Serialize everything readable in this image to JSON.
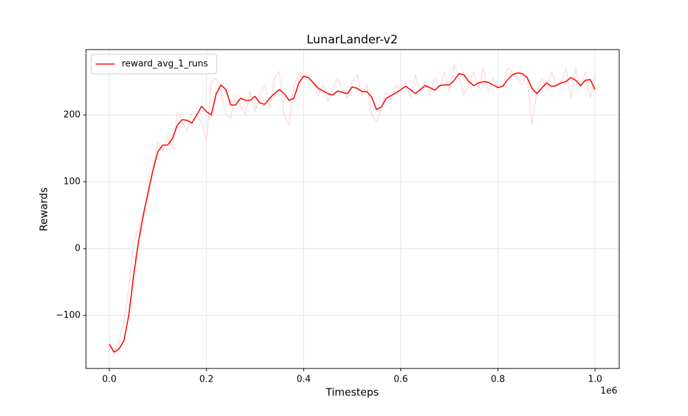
{
  "chart_data": {
    "type": "line",
    "title": "LunarLander-v2",
    "x_label": "Timesteps",
    "y_label": "Rewards",
    "x_offset_label": "1e6",
    "x": [
      0.0,
      0.01,
      0.02,
      0.03,
      0.04,
      0.05,
      0.06,
      0.07,
      0.08,
      0.09,
      0.1,
      0.11,
      0.12,
      0.13,
      0.14,
      0.15,
      0.16,
      0.17,
      0.18,
      0.19,
      0.2,
      0.21,
      0.22,
      0.23,
      0.24,
      0.25,
      0.26,
      0.27,
      0.28,
      0.29,
      0.3,
      0.31,
      0.32,
      0.33,
      0.34,
      0.35,
      0.36,
      0.37,
      0.38,
      0.39,
      0.4,
      0.41,
      0.42,
      0.43,
      0.44,
      0.45,
      0.46,
      0.47,
      0.48,
      0.49,
      0.5,
      0.51,
      0.52,
      0.53,
      0.54,
      0.55,
      0.56,
      0.57,
      0.58,
      0.59,
      0.6,
      0.61,
      0.62,
      0.63,
      0.64,
      0.65,
      0.66,
      0.67,
      0.68,
      0.69,
      0.7,
      0.71,
      0.72,
      0.73,
      0.74,
      0.75,
      0.76,
      0.77,
      0.78,
      0.79,
      0.8,
      0.81,
      0.82,
      0.83,
      0.84,
      0.85,
      0.86,
      0.87,
      0.88,
      0.89,
      0.9,
      0.91,
      0.92,
      0.93,
      0.94,
      0.95,
      0.96,
      0.97,
      0.98,
      0.99,
      1.0
    ],
    "series": [
      {
        "color": "#ffdede",
        "values": [
          -150,
          -152,
          -140,
          -110,
          -60,
          10,
          30,
          55,
          80,
          120,
          160,
          145,
          170,
          150,
          205,
          190,
          175,
          205,
          200,
          190,
          160,
          250,
          255,
          235,
          200,
          195,
          230,
          215,
          200,
          235,
          205,
          230,
          245,
          210,
          255,
          265,
          200,
          185,
          245,
          260,
          255,
          260,
          250,
          228,
          245,
          220,
          240,
          255,
          235,
          225,
          250,
          260,
          230,
          245,
          200,
          190,
          210,
          235,
          222,
          245,
          240,
          250,
          225,
          260,
          235,
          250,
          230,
          255,
          240,
          265,
          235,
          275,
          258,
          230,
          245,
          265,
          240,
          270,
          235,
          255,
          240,
          245,
          270,
          265,
          255,
          245,
          260,
          185,
          235,
          255,
          238,
          265,
          245,
          250,
          270,
          225,
          270,
          240,
          265,
          225,
          262
        ]
      },
      {
        "name": "reward_avg_1_runs",
        "color": "#ff0000",
        "values": [
          -143,
          -155,
          -150,
          -138,
          -100,
          -40,
          10,
          50,
          85,
          118,
          145,
          155,
          155,
          165,
          185,
          193,
          192,
          188,
          200,
          213,
          205,
          200,
          232,
          245,
          238,
          215,
          215,
          225,
          222,
          222,
          228,
          218,
          216,
          225,
          232,
          238,
          232,
          222,
          225,
          248,
          258,
          256,
          248,
          240,
          236,
          232,
          230,
          236,
          234,
          232,
          242,
          240,
          235,
          235,
          227,
          208,
          212,
          225,
          229,
          233,
          238,
          243,
          238,
          232,
          238,
          244,
          241,
          237,
          244,
          245,
          245,
          252,
          262,
          260,
          250,
          244,
          248,
          250,
          249,
          245,
          241,
          243,
          253,
          260,
          263,
          262,
          256,
          240,
          232,
          240,
          248,
          243,
          244,
          248,
          250,
          256,
          252,
          244,
          252,
          253,
          238
        ]
      }
    ],
    "xlim": [
      -0.048,
      1.0496
    ],
    "xticks": [
      {
        "value": 0,
        "label": "0.0"
      },
      0.2,
      0.4,
      0.6,
      0.8,
      {
        "value": 1,
        "label": "1.0"
      }
    ],
    "ylim": [
      -179.4,
      297.9
    ],
    "yticks": [
      {
        "value": -100,
        "label": "−100"
      },
      0,
      100,
      200
    ],
    "grid": true,
    "legend": "upper-left"
  }
}
